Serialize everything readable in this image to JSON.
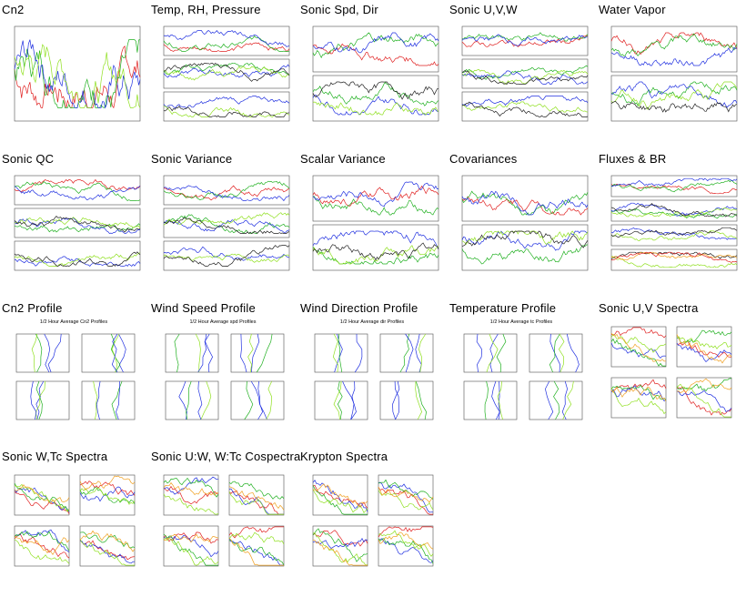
{
  "rows": [
    {
      "cells": [
        {
          "title": "Cn2",
          "kind": "timeseries-single",
          "panels": 1
        },
        {
          "title": "Temp, RH, Pressure",
          "kind": "timeseries-stack",
          "panels": 3
        },
        {
          "title": "Sonic Spd, Dir",
          "kind": "timeseries-stack",
          "panels": 2
        },
        {
          "title": "Sonic U,V,W",
          "kind": "timeseries-stack",
          "panels": 3
        },
        {
          "title": "Water Vapor",
          "kind": "timeseries-stack",
          "panels": 2
        }
      ]
    },
    {
      "cells": [
        {
          "title": "Sonic QC",
          "kind": "timeseries-stack",
          "panels": 3
        },
        {
          "title": "Sonic Variance",
          "kind": "timeseries-stack",
          "panels": 3
        },
        {
          "title": "Scalar Variance",
          "kind": "timeseries-stack",
          "panels": 2
        },
        {
          "title": "Covariances",
          "kind": "timeseries-stack",
          "panels": 2
        },
        {
          "title": "Fluxes & BR",
          "kind": "timeseries-stack",
          "panels": 4
        }
      ]
    },
    {
      "cells": [
        {
          "title": "Cn2 Profile",
          "kind": "profile",
          "subtitle": "1/2 Hour Average Cn2 Profiles"
        },
        {
          "title": "Wind Speed Profile",
          "kind": "profile",
          "subtitle": "1/2 Hour Average spd Profiles"
        },
        {
          "title": "Wind Direction Profile",
          "kind": "profile",
          "subtitle": "1/2 Hour Average dir Profiles"
        },
        {
          "title": "Temperature Profile",
          "kind": "profile",
          "subtitle": "1/2 Hour Average tc Profiles"
        },
        {
          "title": "Sonic U,V Spectra",
          "kind": "spectra"
        }
      ]
    },
    {
      "cells": [
        {
          "title": "Sonic W,Tc Spectra",
          "kind": "spectra"
        },
        {
          "title": "Sonic U:W, W:Tc Cospectra",
          "kind": "spectra"
        },
        {
          "title": "Krypton Spectra",
          "kind": "spectra"
        }
      ]
    }
  ],
  "colors": {
    "red": "#e02020",
    "green": "#20b020",
    "blue": "#2030e0",
    "lime": "#90e020",
    "orange": "#f0a020",
    "black": "#202020",
    "axis": "#505050"
  }
}
